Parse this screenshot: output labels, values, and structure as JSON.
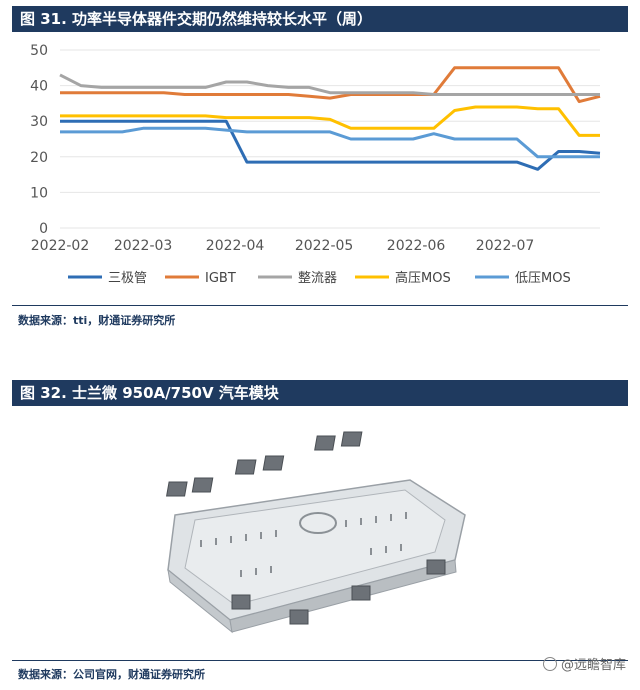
{
  "figure1": {
    "title": "图 31. 功率半导体器件交期仍然维持较长水平（周）",
    "source": "数据来源：tti，财通证券研究所"
  },
  "figure2": {
    "title": "图 32. 士兰微 950A/750V 汽车模块",
    "source": "数据来源：公司官网，财通证券研究所"
  },
  "watermark": "@远瞻智库",
  "chart_data": {
    "type": "line",
    "title": "图 31. 功率半导体器件交期仍然维持较长水平（周）",
    "xlabel": "",
    "ylabel": "",
    "ylim": [
      0,
      50
    ],
    "yticks": [
      0,
      10,
      20,
      30,
      40,
      50
    ],
    "xticks": [
      "2022-02",
      "2022-03",
      "2022-04",
      "2022-05",
      "2022-06",
      "2022-07"
    ],
    "legend": "bottom",
    "grid": "horizontal",
    "x": [
      "2022-02-01",
      "2022-02-08",
      "2022-02-15",
      "2022-02-22",
      "2022-03-01",
      "2022-03-08",
      "2022-03-15",
      "2022-03-22",
      "2022-03-29",
      "2022-04-05",
      "2022-04-12",
      "2022-04-19",
      "2022-04-26",
      "2022-05-03",
      "2022-05-10",
      "2022-05-17",
      "2022-05-24",
      "2022-05-31",
      "2022-06-07",
      "2022-06-14",
      "2022-06-21",
      "2022-06-28",
      "2022-07-05",
      "2022-07-12",
      "2022-07-19",
      "2022-07-26",
      "2022-08-02"
    ],
    "series": [
      {
        "name": "三极管",
        "color": "#2e6db4",
        "values": [
          30,
          30,
          30,
          30,
          30,
          30,
          30,
          30,
          30,
          18.5,
          18.5,
          18.5,
          18.5,
          18.5,
          18.5,
          18.5,
          18.5,
          18.5,
          18.5,
          18.5,
          18.5,
          18.5,
          18.5,
          16.5,
          21.5,
          21.5,
          21
        ]
      },
      {
        "name": "IGBT",
        "color": "#e07b39",
        "values": [
          38,
          38,
          38,
          38,
          38,
          38,
          37.5,
          37.5,
          37.5,
          37.5,
          37.5,
          37.5,
          37,
          36.5,
          37.5,
          37.5,
          37.5,
          37.5,
          37.5,
          45,
          45,
          45,
          45,
          45,
          45,
          35.5,
          37
        ]
      },
      {
        "name": "整流器",
        "color": "#a5a5a5",
        "values": [
          43,
          40,
          39.5,
          39.5,
          39.5,
          39.5,
          39.5,
          39.5,
          41,
          41,
          40,
          39.5,
          39.5,
          38,
          38,
          38,
          38,
          38,
          37.5,
          37.5,
          37.5,
          37.5,
          37.5,
          37.5,
          37.5,
          37.5,
          37.5
        ]
      },
      {
        "name": "高压MOS",
        "color": "#ffc000",
        "values": [
          31.5,
          31.5,
          31.5,
          31.5,
          31.5,
          31.5,
          31.5,
          31.5,
          31,
          31,
          31,
          31,
          31,
          30.5,
          28,
          28,
          28,
          28,
          28,
          33,
          34,
          34,
          34,
          33.5,
          33.5,
          26,
          26
        ]
      },
      {
        "name": "低压MOS",
        "color": "#5b9bd5",
        "values": [
          27,
          27,
          27,
          27,
          28,
          28,
          28,
          28,
          27.5,
          27,
          27,
          27,
          27,
          27,
          25,
          25,
          25,
          25,
          26.5,
          25,
          25,
          25,
          25,
          20,
          20,
          20,
          20
        ]
      }
    ]
  }
}
